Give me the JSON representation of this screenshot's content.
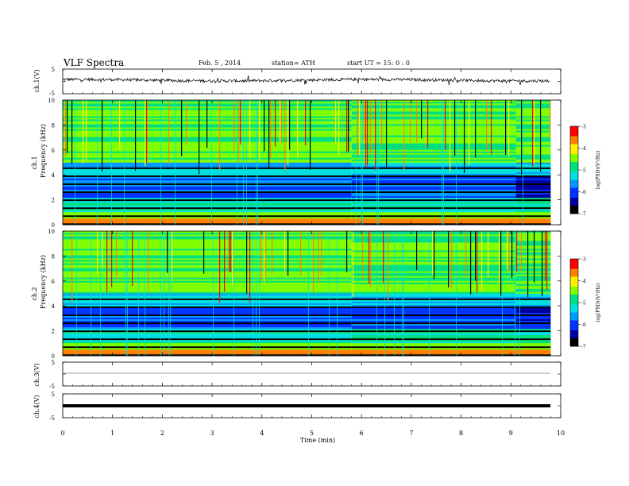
{
  "header": {
    "title": "VLF Spectra",
    "date": "Feb. 5 , 2014",
    "station": "station= ATH",
    "start": "start UT = 15: 0 : 0"
  },
  "colors": {
    "colormap": [
      "#000000",
      "#0000a0",
      "#0033ff",
      "#0099ff",
      "#00e0e0",
      "#00e080",
      "#80ff00",
      "#ffee00",
      "#ff8000",
      "#ff0000",
      "#ffffff"
    ],
    "trace": "#000000"
  },
  "chart_data": [
    {
      "type": "line",
      "name": "ch1-waveform",
      "ylabel": "ch.1(V)",
      "ylim": [
        -5,
        5
      ],
      "yticks": [
        "5",
        "-5"
      ],
      "baseline": 0.5,
      "noise_amplitude": 0.6
    },
    {
      "type": "heatmap",
      "name": "ch1-spectrogram",
      "ylabel_top": "ch.1",
      "ylabel": "Frequency (kHz)",
      "ylim": [
        0,
        10
      ],
      "yticks": [
        "0",
        "2",
        "4",
        "6",
        "8",
        "10"
      ],
      "xlim": [
        0,
        9.8
      ],
      "colorbar": {
        "label": "log(PSD)(V²/Hz)",
        "ticks": [
          "-3",
          "-4",
          "-5",
          "-6",
          "-7"
        ],
        "range": [
          -7,
          -3
        ]
      },
      "band_changes_min": [
        5.8,
        9.1
      ]
    },
    {
      "type": "heatmap",
      "name": "ch2-spectrogram",
      "ylabel_top": "ch.2",
      "ylabel": "Frequency (kHz)",
      "ylim": [
        0,
        10
      ],
      "yticks": [
        "0",
        "2",
        "4",
        "6",
        "8",
        "10"
      ],
      "xlim": [
        0,
        9.8
      ],
      "colorbar": {
        "label": "log(PSD)(V²/Hz)",
        "ticks": [
          "-3",
          "-4",
          "-5",
          "-6",
          "-7"
        ],
        "range": [
          -7,
          -3
        ]
      },
      "band_changes_min": [
        5.8,
        9.1
      ]
    },
    {
      "type": "line",
      "name": "ch3-waveform",
      "ylabel": "ch.3(V)",
      "ylim": [
        -5,
        5
      ],
      "yticks": [
        "5",
        "-5"
      ],
      "baseline": 0
    },
    {
      "type": "line",
      "name": "ch4-waveform",
      "ylabel": "ch.4(V)",
      "ylim": [
        -5,
        5
      ],
      "yticks": [
        "5",
        "-5"
      ],
      "baseline": 0
    }
  ],
  "xaxis": {
    "label": "Time (min)",
    "ticks": [
      "0",
      "1",
      "2",
      "3",
      "4",
      "5",
      "6",
      "7",
      "8",
      "9",
      "10"
    ],
    "xlim": [
      0,
      10
    ]
  }
}
